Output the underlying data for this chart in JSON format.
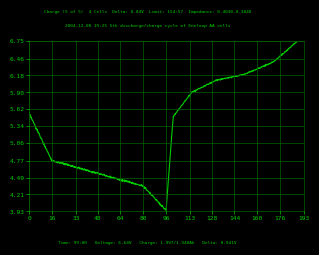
{
  "title_line1": "Charge (5 of 5)  4 Cells  Delta: 0.04V  Limit: 154:57  Impedance: 0.4030-0.3840",
  "title_line2": "2004-12-08 19:25 5th discharge/charge cycle of Eneloop AA cells",
  "xlabel_info": "Time: 99:00   Voltage: 6.64V   Charge: 1.997/1.940Ah   Delta: 0.041V",
  "background_color": "#000000",
  "grid_color": "#006400",
  "line_color": "#00CC00",
  "text_color": "#00CC00",
  "title_color": "#00CC00",
  "ylim_min": 3.93,
  "ylim_max": 6.75,
  "xlim_min": 0,
  "xlim_max": 193,
  "yticks": [
    3.93,
    4.21,
    4.49,
    4.77,
    5.06,
    5.34,
    5.62,
    5.9,
    6.18,
    6.46,
    6.75
  ],
  "xticks": [
    0,
    16,
    33,
    48,
    64,
    80,
    96,
    113,
    128,
    144,
    160,
    176,
    193
  ]
}
